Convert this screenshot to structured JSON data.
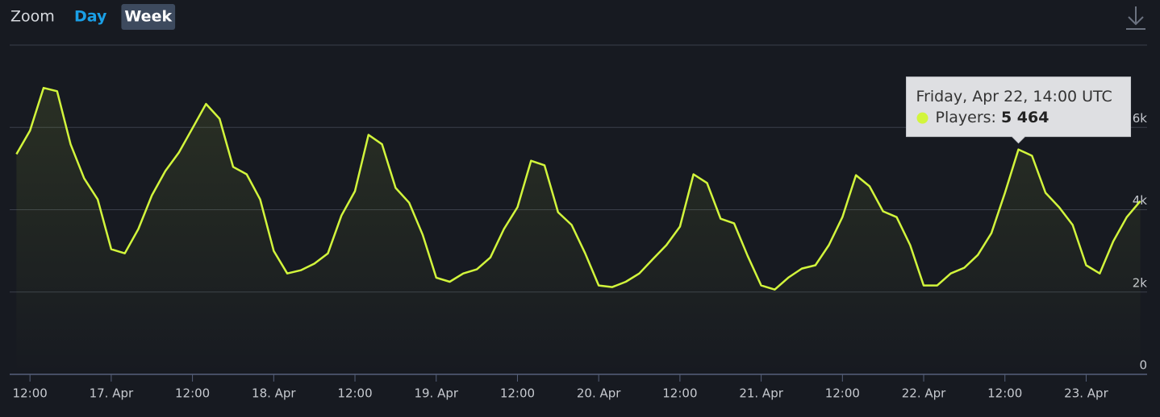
{
  "controls": {
    "label": "Zoom",
    "buttons": [
      "Day",
      "Week"
    ],
    "active": "Week"
  },
  "chart_data": {
    "type": "line",
    "x": [
      "Apr 16, 10:00",
      "Apr 16, 12:00",
      "Apr 16, 14:00",
      "Apr 16, 16:00",
      "Apr 16, 18:00",
      "Apr 16, 20:00",
      "Apr 16, 22:00",
      "Apr 17, 00:00",
      "Apr 17, 02:00",
      "Apr 17, 04:00",
      "Apr 17, 06:00",
      "Apr 17, 08:00",
      "Apr 17, 10:00",
      "Apr 17, 12:00",
      "Apr 17, 14:00",
      "Apr 17, 16:00",
      "Apr 17, 18:00",
      "Apr 17, 20:00",
      "Apr 17, 22:00",
      "Apr 18, 00:00",
      "Apr 18, 02:00",
      "Apr 18, 04:00",
      "Apr 18, 06:00",
      "Apr 18, 08:00",
      "Apr 18, 10:00",
      "Apr 18, 12:00",
      "Apr 18, 14:00",
      "Apr 18, 16:00",
      "Apr 18, 18:00",
      "Apr 18, 20:00",
      "Apr 18, 22:00",
      "Apr 19, 00:00",
      "Apr 19, 02:00",
      "Apr 19, 04:00",
      "Apr 19, 06:00",
      "Apr 19, 08:00",
      "Apr 19, 10:00",
      "Apr 19, 12:00",
      "Apr 19, 14:00",
      "Apr 19, 16:00",
      "Apr 19, 18:00",
      "Apr 19, 20:00",
      "Apr 19, 22:00",
      "Apr 20, 00:00",
      "Apr 20, 02:00",
      "Apr 20, 04:00",
      "Apr 20, 06:00",
      "Apr 20, 08:00",
      "Apr 20, 10:00",
      "Apr 20, 12:00",
      "Apr 20, 14:00",
      "Apr 20, 16:00",
      "Apr 20, 18:00",
      "Apr 20, 20:00",
      "Apr 20, 22:00",
      "Apr 21, 00:00",
      "Apr 21, 02:00",
      "Apr 21, 04:00",
      "Apr 21, 06:00",
      "Apr 21, 08:00",
      "Apr 21, 10:00",
      "Apr 21, 12:00",
      "Apr 21, 14:00",
      "Apr 21, 16:00",
      "Apr 21, 18:00",
      "Apr 21, 20:00",
      "Apr 21, 22:00",
      "Apr 22, 00:00",
      "Apr 22, 02:00",
      "Apr 22, 04:00",
      "Apr 22, 06:00",
      "Apr 22, 08:00",
      "Apr 22, 10:00",
      "Apr 22, 12:00",
      "Apr 22, 14:00",
      "Apr 22, 16:00",
      "Apr 22, 18:00",
      "Apr 22, 20:00",
      "Apr 22, 22:00",
      "Apr 23, 00:00",
      "Apr 23, 02:00",
      "Apr 23, 04:00",
      "Apr 23, 06:00",
      "Apr 23, 08:00"
    ],
    "series": [
      {
        "color": "#d2f53c",
        "values": [
          5350,
          5920,
          6960,
          6880,
          5590,
          4760,
          4250,
          3040,
          2940,
          3530,
          4350,
          4940,
          5390,
          5980,
          6570,
          6210,
          5040,
          4860,
          4250,
          3000,
          2450,
          2530,
          2690,
          2940,
          3860,
          4450,
          5820,
          5590,
          4530,
          4170,
          3390,
          2350,
          2250,
          2450,
          2550,
          2840,
          3530,
          4060,
          5190,
          5080,
          3940,
          3630,
          2940,
          2160,
          2120,
          2250,
          2450,
          2800,
          3140,
          3590,
          4860,
          4650,
          3780,
          3670,
          2880,
          2160,
          2060,
          2350,
          2570,
          2650,
          3140,
          3820,
          4840,
          4570,
          3960,
          3820,
          3140,
          2160,
          2160,
          2450,
          2590,
          2900,
          3430,
          4410,
          5464,
          5310,
          4410,
          4060,
          3630,
          2650,
          2450,
          3230,
          3820,
          4210
        ]
      }
    ],
    "xlim": [
      "Apr 16, 09:00",
      "Apr 23, 09:00"
    ],
    "xticks": [
      {
        "value": "Apr 16, 12:00",
        "label": "12:00"
      },
      {
        "value": "Apr 17, 00:00",
        "label": "17. Apr"
      },
      {
        "value": "Apr 17, 12:00",
        "label": "12:00"
      },
      {
        "value": "Apr 18, 00:00",
        "label": "18. Apr"
      },
      {
        "value": "Apr 18, 12:00",
        "label": "12:00"
      },
      {
        "value": "Apr 19, 00:00",
        "label": "19. Apr"
      },
      {
        "value": "Apr 19, 12:00",
        "label": "12:00"
      },
      {
        "value": "Apr 20, 00:00",
        "label": "20. Apr"
      },
      {
        "value": "Apr 20, 12:00",
        "label": "12:00"
      },
      {
        "value": "Apr 21, 00:00",
        "label": "21. Apr"
      },
      {
        "value": "Apr 21, 12:00",
        "label": "12:00"
      },
      {
        "value": "Apr 22, 00:00",
        "label": "22. Apr"
      },
      {
        "value": "Apr 22, 12:00",
        "label": "12:00"
      },
      {
        "value": "Apr 23, 00:00",
        "label": "23. Apr"
      }
    ],
    "ylim": [
      0,
      8000
    ],
    "yticks": [
      0,
      {
        "value": 2000,
        "label": "2k"
      },
      {
        "value": 4000,
        "label": "4k"
      },
      {
        "value": 6000,
        "label": "6k"
      }
    ],
    "grid": true,
    "tooltip": {
      "title": "Friday, Apr 22, 14:00 UTC",
      "label": "Players:",
      "value_label": "5 464"
    }
  }
}
